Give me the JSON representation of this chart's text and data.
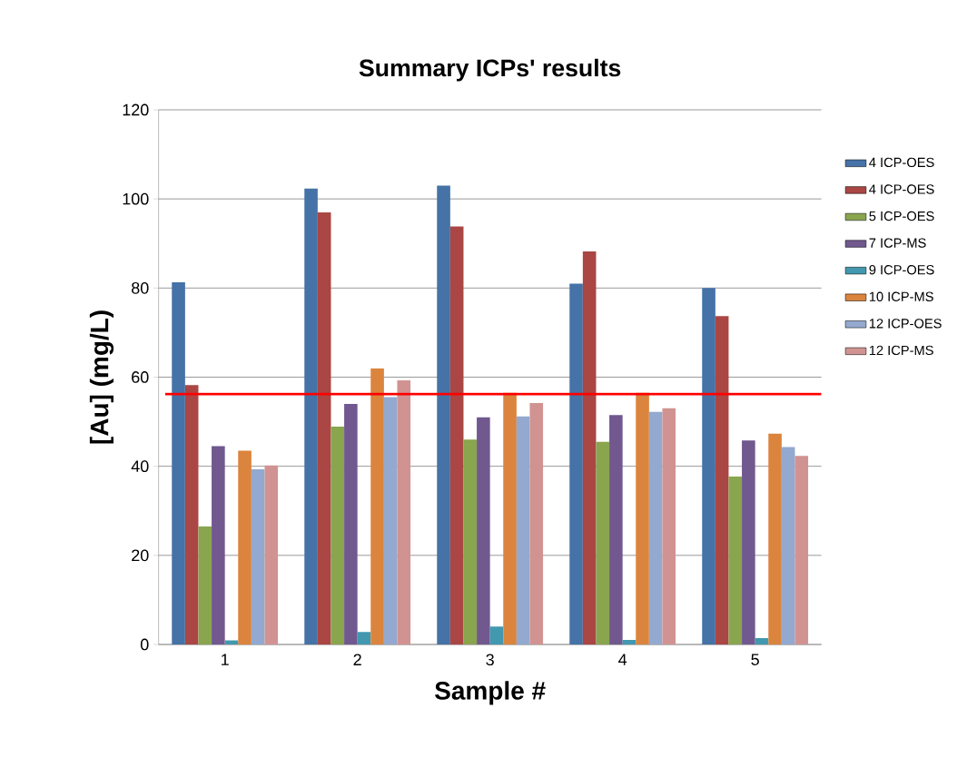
{
  "chart_data": {
    "type": "bar",
    "title": "Summary ICPs' results",
    "xlabel": "Sample #",
    "ylabel": "[Au] (mg/L)",
    "categories": [
      "1",
      "2",
      "3",
      "4",
      "5"
    ],
    "series": [
      {
        "name": "4 ICP-OES",
        "color": "#4572a7",
        "values": [
          81.3,
          102.3,
          103,
          81,
          80
        ]
      },
      {
        "name": "4 ICP-OES",
        "color": "#aa4643",
        "values": [
          58.2,
          97,
          93.8,
          88.2,
          73.7
        ]
      },
      {
        "name": "5 ICP-OES",
        "color": "#89a54e",
        "values": [
          26.5,
          48.9,
          46,
          45.5,
          37.7
        ]
      },
      {
        "name": "7 ICP-MS",
        "color": "#71588f",
        "values": [
          44.5,
          54,
          51,
          51.5,
          45.8
        ]
      },
      {
        "name": "9 ICP-OES",
        "color": "#4198af",
        "values": [
          0.9,
          2.8,
          4,
          1,
          1.4
        ]
      },
      {
        "name": "10 ICP-MS",
        "color": "#db843d",
        "values": [
          43.5,
          62,
          56.5,
          56.5,
          47.3
        ]
      },
      {
        "name": "12 ICP-OES",
        "color": "#93a9cf",
        "values": [
          39.3,
          55.5,
          51.2,
          52.2,
          44.3
        ]
      },
      {
        "name": "12 ICP-MS",
        "color": "#d19392",
        "values": [
          40.2,
          59.3,
          54.2,
          53,
          42.3
        ]
      }
    ],
    "ylim": [
      0,
      120
    ],
    "yticks": [
      0,
      20,
      40,
      60,
      80,
      100,
      120
    ],
    "grid": "y",
    "legend": "right",
    "ref_lines": [
      {
        "axis": "y",
        "value": 56.2,
        "color": "#ff0000"
      }
    ]
  }
}
